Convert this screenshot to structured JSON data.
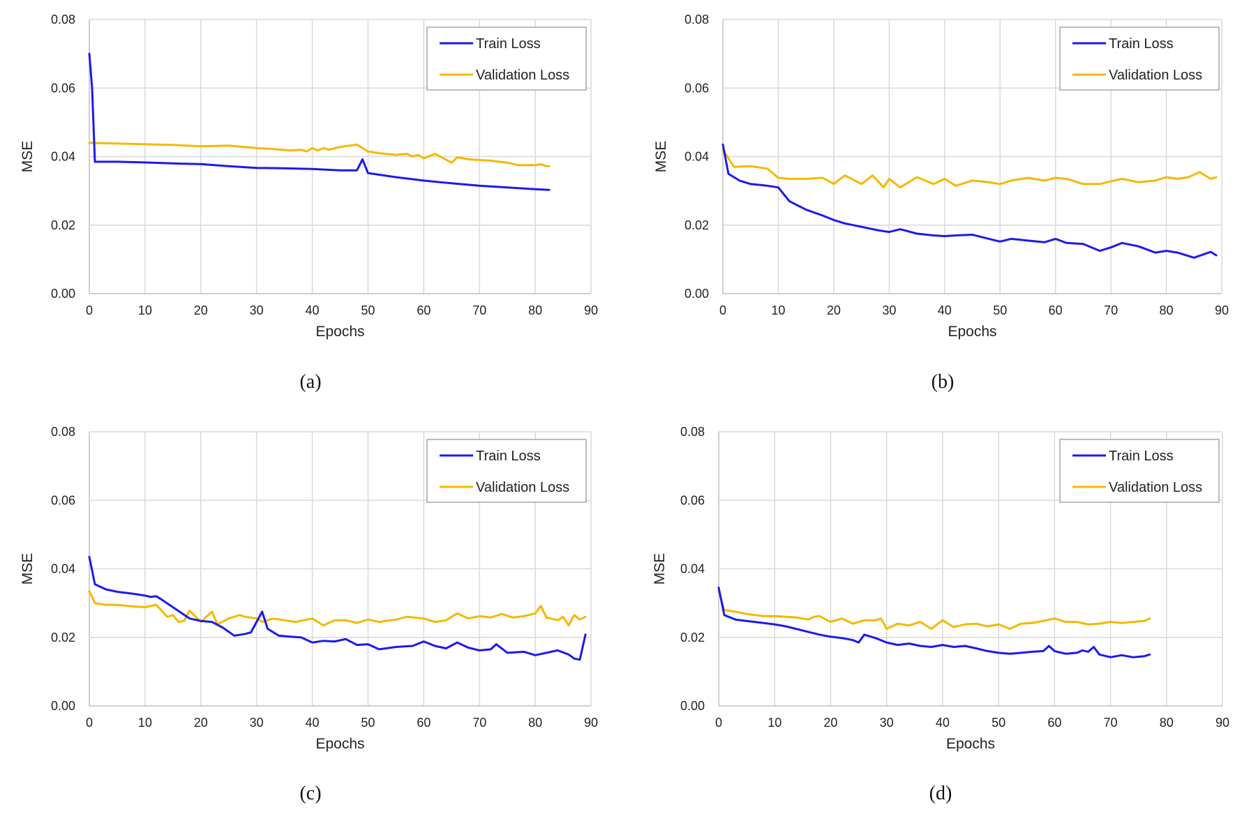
{
  "figure": {
    "panel_captions": [
      "(a)",
      "(b)",
      "(c)",
      "(d)"
    ]
  },
  "colors": {
    "train": "#1a1aee",
    "validation": "#f5b800"
  },
  "chart_data": [
    {
      "type": "line",
      "caption": "(a)",
      "xlabel": "Epochs",
      "ylabel": "MSE",
      "xlim": [
        0,
        90
      ],
      "ylim": [
        0,
        0.08
      ],
      "xticks": [
        "0",
        "10",
        "20",
        "30",
        "40",
        "50",
        "60",
        "70",
        "80",
        "90"
      ],
      "yticks": [
        "0.00",
        "0.02",
        "0.04",
        "0.06",
        "0.08"
      ],
      "legend": [
        "Train Loss",
        "Validation Loss"
      ],
      "legend_position": "top-right",
      "series": [
        {
          "name": "Train Loss",
          "x": [
            0,
            0.5,
            1,
            5,
            10,
            15,
            20,
            25,
            30,
            35,
            40,
            45,
            48,
            49,
            50,
            55,
            60,
            65,
            70,
            75,
            80,
            82.5
          ],
          "y": [
            0.07,
            0.06,
            0.0385,
            0.0385,
            0.0383,
            0.038,
            0.0378,
            0.0372,
            0.0367,
            0.0366,
            0.0364,
            0.036,
            0.036,
            0.0392,
            0.0352,
            0.034,
            0.033,
            0.0322,
            0.0315,
            0.031,
            0.0305,
            0.0303
          ]
        },
        {
          "name": "Validation Loss",
          "x": [
            0,
            5,
            10,
            15,
            20,
            25,
            30,
            33,
            36,
            38,
            39,
            40,
            41,
            42,
            43,
            45,
            48,
            49,
            50,
            52,
            55,
            57,
            58,
            59,
            60,
            62,
            63,
            65,
            66,
            68,
            70,
            72,
            75,
            77,
            80,
            81,
            82,
            82.5
          ],
          "y": [
            0.044,
            0.0438,
            0.0436,
            0.0434,
            0.043,
            0.0432,
            0.0425,
            0.0422,
            0.0418,
            0.042,
            0.0415,
            0.0425,
            0.0418,
            0.0425,
            0.042,
            0.0428,
            0.0435,
            0.0425,
            0.0415,
            0.041,
            0.0405,
            0.0408,
            0.04,
            0.0405,
            0.0395,
            0.0408,
            0.04,
            0.0382,
            0.0398,
            0.0392,
            0.039,
            0.0388,
            0.0382,
            0.0375,
            0.0375,
            0.0378,
            0.0372,
            0.0372
          ]
        }
      ]
    },
    {
      "type": "line",
      "caption": "(b)",
      "xlabel": "Epochs",
      "ylabel": "MSE",
      "xlim": [
        0,
        90
      ],
      "ylim": [
        0,
        0.08
      ],
      "xticks": [
        "0",
        "10",
        "20",
        "30",
        "40",
        "50",
        "60",
        "70",
        "80",
        "90"
      ],
      "yticks": [
        "0.00",
        "0.02",
        "0.04",
        "0.06",
        "0.08"
      ],
      "legend": [
        "Train Loss",
        "Validation Loss"
      ],
      "legend_position": "top-right",
      "series": [
        {
          "name": "Train Loss",
          "x": [
            0,
            1,
            3,
            5,
            8,
            10,
            12,
            15,
            18,
            20,
            22,
            25,
            28,
            30,
            32,
            35,
            38,
            40,
            42,
            45,
            48,
            50,
            52,
            55,
            58,
            60,
            62,
            65,
            68,
            70,
            72,
            75,
            78,
            80,
            82,
            85,
            88,
            89
          ],
          "y": [
            0.0435,
            0.035,
            0.033,
            0.032,
            0.0315,
            0.031,
            0.027,
            0.0245,
            0.0228,
            0.0215,
            0.0205,
            0.0195,
            0.0185,
            0.018,
            0.0188,
            0.0175,
            0.017,
            0.0168,
            0.017,
            0.0172,
            0.016,
            0.0152,
            0.016,
            0.0155,
            0.015,
            0.016,
            0.0148,
            0.0145,
            0.0125,
            0.0135,
            0.0148,
            0.0138,
            0.012,
            0.0125,
            0.012,
            0.0105,
            0.0122,
            0.0112
          ]
        },
        {
          "name": "Validation Loss",
          "x": [
            0,
            2,
            5,
            8,
            10,
            12,
            15,
            18,
            20,
            22,
            25,
            27,
            29,
            30,
            32,
            35,
            38,
            40,
            42,
            45,
            48,
            50,
            52,
            55,
            58,
            60,
            62,
            65,
            68,
            70,
            72,
            75,
            78,
            80,
            82,
            84,
            86,
            88,
            89
          ],
          "y": [
            0.042,
            0.037,
            0.0372,
            0.0365,
            0.0338,
            0.0335,
            0.0335,
            0.0338,
            0.032,
            0.0345,
            0.032,
            0.0345,
            0.031,
            0.0335,
            0.031,
            0.034,
            0.032,
            0.0335,
            0.0315,
            0.033,
            0.0325,
            0.032,
            0.033,
            0.0338,
            0.033,
            0.0338,
            0.0335,
            0.032,
            0.032,
            0.0328,
            0.0335,
            0.0325,
            0.033,
            0.034,
            0.0335,
            0.034,
            0.0355,
            0.0335,
            0.034
          ]
        }
      ]
    },
    {
      "type": "line",
      "caption": "(c)",
      "xlabel": "Epochs",
      "ylabel": "MSE",
      "xlim": [
        0,
        90
      ],
      "ylim": [
        0,
        0.08
      ],
      "xticks": [
        "0",
        "10",
        "20",
        "30",
        "40",
        "50",
        "60",
        "70",
        "80",
        "90"
      ],
      "yticks": [
        "0.00",
        "0.02",
        "0.04",
        "0.06",
        "0.08"
      ],
      "legend": [
        "Train Loss",
        "Validation Loss"
      ],
      "legend_position": "top-right",
      "series": [
        {
          "name": "Train Loss",
          "x": [
            0,
            1,
            3,
            5,
            8,
            10,
            11,
            12,
            13,
            15,
            18,
            20,
            22,
            24,
            26,
            28,
            29,
            30,
            31,
            32,
            34,
            36,
            38,
            40,
            42,
            44,
            46,
            48,
            50,
            52,
            55,
            58,
            60,
            62,
            64,
            66,
            68,
            70,
            72,
            73,
            75,
            78,
            80,
            82,
            84,
            86,
            87,
            88,
            89
          ],
          "y": [
            0.0435,
            0.0355,
            0.034,
            0.0333,
            0.0327,
            0.0322,
            0.0318,
            0.032,
            0.031,
            0.0288,
            0.0255,
            0.0248,
            0.0245,
            0.0228,
            0.0205,
            0.021,
            0.0215,
            0.0245,
            0.0275,
            0.0225,
            0.0205,
            0.0202,
            0.02,
            0.0185,
            0.019,
            0.0188,
            0.0195,
            0.0178,
            0.018,
            0.0165,
            0.0172,
            0.0175,
            0.0188,
            0.0175,
            0.0168,
            0.0185,
            0.017,
            0.0162,
            0.0165,
            0.018,
            0.0155,
            0.0158,
            0.0148,
            0.0155,
            0.0162,
            0.015,
            0.0138,
            0.0135,
            0.0208
          ]
        },
        {
          "name": "Validation Loss",
          "x": [
            0,
            1,
            3,
            5,
            8,
            10,
            12,
            14,
            15,
            16,
            17,
            18,
            20,
            22,
            23,
            25,
            27,
            28,
            30,
            31,
            33,
            35,
            37,
            40,
            42,
            44,
            46,
            48,
            50,
            52,
            55,
            57,
            60,
            62,
            64,
            66,
            68,
            70,
            72,
            74,
            76,
            78,
            80,
            81,
            82,
            84,
            85,
            86,
            87,
            88,
            89
          ],
          "y": [
            0.0335,
            0.03,
            0.0295,
            0.0295,
            0.029,
            0.0288,
            0.0295,
            0.026,
            0.0265,
            0.0245,
            0.0248,
            0.0278,
            0.0245,
            0.0275,
            0.0238,
            0.0255,
            0.0265,
            0.026,
            0.0255,
            0.0245,
            0.0255,
            0.025,
            0.0245,
            0.0255,
            0.0235,
            0.025,
            0.025,
            0.0242,
            0.0252,
            0.0245,
            0.0252,
            0.026,
            0.0255,
            0.0245,
            0.025,
            0.027,
            0.0255,
            0.0262,
            0.0258,
            0.0268,
            0.0258,
            0.0262,
            0.027,
            0.0292,
            0.0258,
            0.025,
            0.026,
            0.0235,
            0.0265,
            0.0252,
            0.026
          ]
        }
      ]
    },
    {
      "type": "line",
      "caption": "(d)",
      "xlabel": "Epochs",
      "ylabel": "MSE",
      "xlim": [
        0,
        90
      ],
      "ylim": [
        0,
        0.08
      ],
      "xticks": [
        "0",
        "10",
        "20",
        "30",
        "40",
        "50",
        "60",
        "70",
        "80",
        "90"
      ],
      "yticks": [
        "0.00",
        "0.02",
        "0.04",
        "0.06",
        "0.08"
      ],
      "legend": [
        "Train Loss",
        "Validation Loss"
      ],
      "legend_position": "top-right",
      "series": [
        {
          "name": "Train Loss",
          "x": [
            0,
            1,
            3,
            5,
            8,
            10,
            12,
            15,
            18,
            20,
            22,
            24,
            25,
            26,
            28,
            30,
            32,
            34,
            36,
            38,
            40,
            42,
            44,
            46,
            48,
            50,
            52,
            54,
            56,
            58,
            59,
            60,
            62,
            64,
            65,
            66,
            67,
            68,
            70,
            72,
            74,
            76,
            77
          ],
          "y": [
            0.0345,
            0.0265,
            0.0252,
            0.0248,
            0.0242,
            0.0238,
            0.0232,
            0.022,
            0.0208,
            0.0202,
            0.0198,
            0.0192,
            0.0185,
            0.0208,
            0.0198,
            0.0185,
            0.0178,
            0.0182,
            0.0175,
            0.0172,
            0.0178,
            0.0172,
            0.0175,
            0.0168,
            0.016,
            0.0155,
            0.0152,
            0.0155,
            0.0158,
            0.016,
            0.0175,
            0.016,
            0.0152,
            0.0155,
            0.0162,
            0.0158,
            0.0172,
            0.015,
            0.0142,
            0.0148,
            0.0142,
            0.0145,
            0.015
          ]
        },
        {
          "name": "Validation Loss",
          "x": [
            0,
            1,
            3,
            5,
            8,
            10,
            12,
            14,
            16,
            17,
            18,
            20,
            22,
            24,
            26,
            28,
            29,
            30,
            32,
            34,
            36,
            38,
            40,
            42,
            44,
            46,
            48,
            50,
            52,
            54,
            56,
            58,
            60,
            62,
            64,
            66,
            68,
            70,
            72,
            74,
            76,
            77
          ],
          "y": [
            0.0335,
            0.028,
            0.0275,
            0.0268,
            0.0262,
            0.0262,
            0.026,
            0.0258,
            0.0252,
            0.026,
            0.0262,
            0.0245,
            0.0255,
            0.024,
            0.025,
            0.025,
            0.0255,
            0.0225,
            0.024,
            0.0235,
            0.0245,
            0.0225,
            0.025,
            0.023,
            0.0238,
            0.024,
            0.0232,
            0.0238,
            0.0225,
            0.024,
            0.0242,
            0.0248,
            0.0255,
            0.0245,
            0.0245,
            0.0238,
            0.024,
            0.0245,
            0.0242,
            0.0245,
            0.0248,
            0.0255
          ]
        }
      ]
    }
  ]
}
